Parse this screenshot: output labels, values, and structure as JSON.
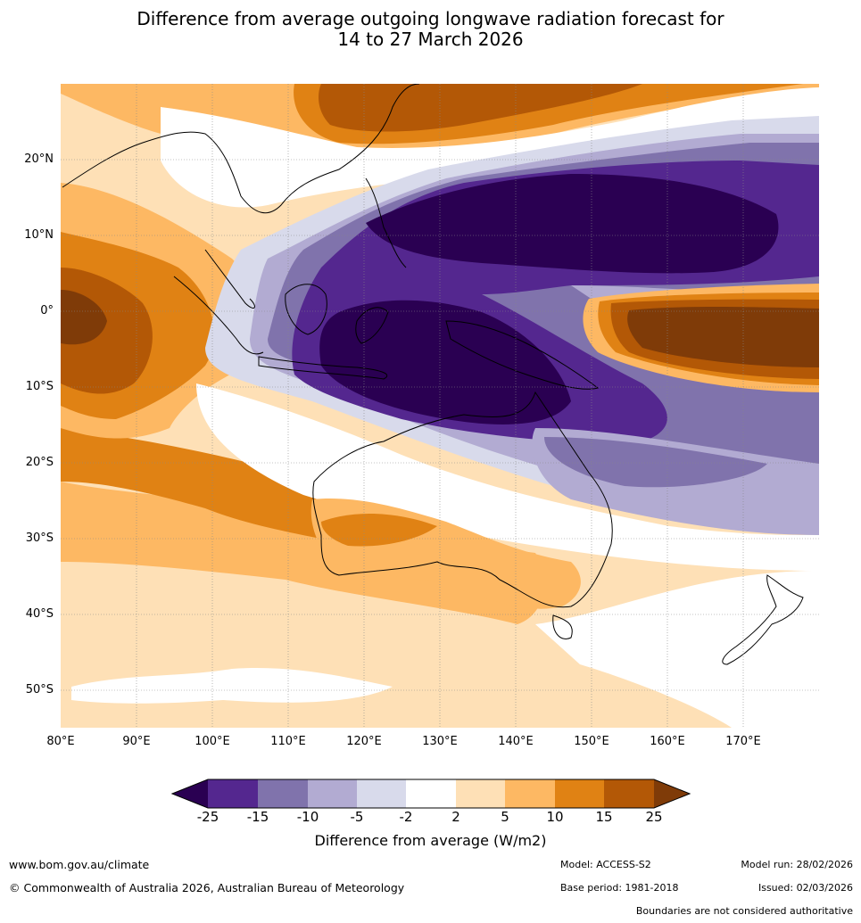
{
  "title": {
    "line1": "Difference from average outgoing longwave radiation forecast for",
    "line2": "14 to 27 March 2026"
  },
  "map": {
    "lat_labels": [
      "20°N",
      "10°N",
      "0°",
      "10°S",
      "20°S",
      "30°S",
      "40°S",
      "50°S"
    ],
    "lon_labels": [
      "80°E",
      "90°E",
      "100°E",
      "110°E",
      "120°E",
      "130°E",
      "140°E",
      "150°E",
      "160°E",
      "170°E"
    ]
  },
  "colorbar": {
    "labels": [
      "-25",
      "-15",
      "-10",
      "-5",
      "-2",
      "2",
      "5",
      "10",
      "15",
      "25"
    ],
    "colors": {
      "le_-25": "#2a0052",
      "-25_-15": "#54278f",
      "-15_-10": "#8073ac",
      "-10_-5": "#b2abd2",
      "-5_-2": "#d8daeb",
      "-2_2": "#ffffff",
      "2_5": "#fee0b6",
      "5_10": "#fdb863",
      "10_15": "#e08214",
      "15_25": "#b35806",
      "ge_25": "#7f3b08"
    },
    "title": "Difference from average (W/m2)"
  },
  "footer": {
    "website": "www.bom.gov.au/climate",
    "copyright": "© Commonwealth of Australia 2026, Australian Bureau of Meteorology",
    "model": "Model: ACCESS-S2",
    "base_period": "Base period: 1981-2018",
    "model_run": "Model run: 28/02/2026",
    "issued": "Issued: 02/03/2026",
    "disclaimer": "Boundaries are not considered authoritative"
  }
}
